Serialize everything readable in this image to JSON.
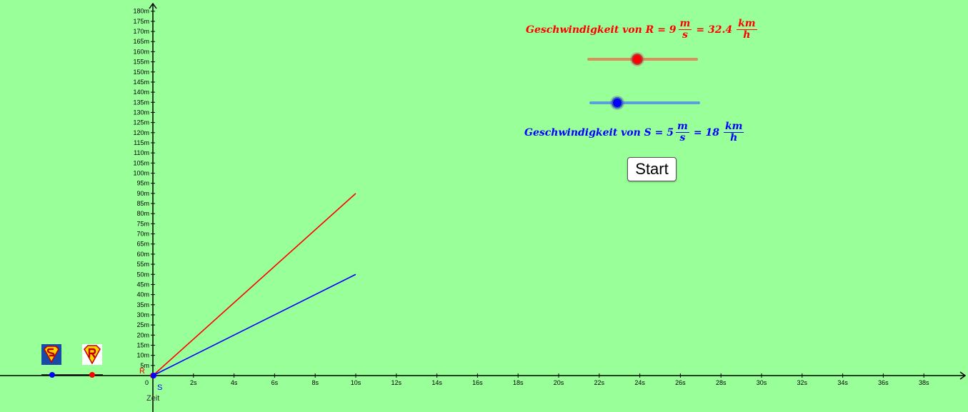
{
  "chart_data": {
    "type": "line",
    "x_axis": {
      "label": "Zeit",
      "range": [
        0,
        40
      ],
      "ticks": [
        "0",
        "2s",
        "4s",
        "6s",
        "8s",
        "10s",
        "12s",
        "14s",
        "16s",
        "18s",
        "20s",
        "22s",
        "24s",
        "26s",
        "28s",
        "30s",
        "32s",
        "34s",
        "36s",
        "38s"
      ]
    },
    "y_axis": {
      "range": [
        0,
        185
      ],
      "ticks": [
        "5m",
        "10m",
        "15m",
        "20m",
        "25m",
        "30m",
        "35m",
        "40m",
        "45m",
        "50m",
        "55m",
        "60m",
        "65m",
        "70m",
        "75m",
        "80m",
        "85m",
        "90m",
        "95m",
        "100m",
        "105m",
        "110m",
        "115m",
        "120m",
        "125m",
        "130m",
        "135m",
        "140m",
        "145m",
        "150m",
        "155m",
        "160m",
        "165m",
        "170m",
        "175m",
        "180m"
      ]
    },
    "series": [
      {
        "name": "R",
        "color": "#ff0000",
        "x": [
          0,
          10
        ],
        "y": [
          0,
          90
        ]
      },
      {
        "name": "S",
        "color": "#0000ff",
        "x": [
          0,
          10
        ],
        "y": [
          0,
          50
        ]
      }
    ],
    "grid": false,
    "legend": "none"
  },
  "speed_r": {
    "prefix": "Geschwindigkeit von R = 9",
    "frac1_num": "m",
    "frac1_den": "s",
    "equals": "= 32.4",
    "frac2_num": "km",
    "frac2_den": "h",
    "value": 9,
    "min": 0,
    "max": 20,
    "color": "#ff0000"
  },
  "speed_s": {
    "prefix": "Geschwindigkeit von S = 5",
    "frac1_num": "m",
    "frac1_den": "s",
    "equals": "= 18",
    "frac2_num": "km",
    "frac2_den": "h",
    "value": 5,
    "min": 0,
    "max": 20,
    "color": "#0000ff"
  },
  "start_label": "Start",
  "icons": {
    "superman": "superman-s-icon",
    "r_hero": "r-hero-icon"
  }
}
